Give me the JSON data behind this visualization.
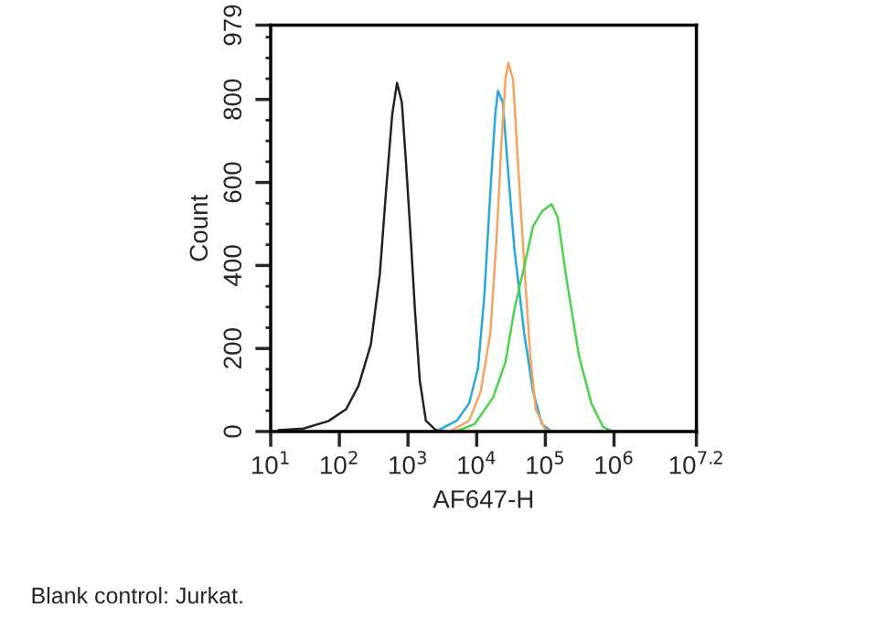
{
  "chart_data": {
    "type": "line",
    "xlabel": "AF647-H",
    "ylabel": "Count",
    "log": "x",
    "xlim": [
      10,
      15848932
    ],
    "ylim": [
      0,
      979
    ],
    "xticks": [
      {
        "value": 10,
        "label": "10$^{1}$"
      },
      {
        "value": 100,
        "label": "10$^{2}$"
      },
      {
        "value": 1000,
        "label": "10$^{3}$"
      },
      {
        "value": 10000,
        "label": "10$^{4}$"
      },
      {
        "value": 100000,
        "label": "10$^{5}$"
      },
      {
        "value": 1000000,
        "label": "10$^{6}$"
      },
      {
        "value": 15848932,
        "label": "10$^{7.2}$"
      }
    ],
    "yticks": [
      0,
      200,
      400,
      600,
      800,
      979
    ],
    "marker": "none",
    "line_style": "solid",
    "series": [
      {
        "color": "#222222",
        "x": [
          13,
          30,
          69,
          126,
          191,
          288,
          389,
          479,
          589,
          692,
          813,
          933,
          1096,
          1259,
          1479,
          1820,
          2512,
          3388
        ],
        "values": [
          3,
          7,
          25,
          54,
          111,
          210,
          380,
          580,
          764,
          840,
          793,
          650,
          466,
          295,
          125,
          26,
          4,
          0
        ]
      },
      {
        "color": "#29a9d9",
        "x": [
          2754,
          5129,
          7762,
          10471,
          12882,
          15849,
          18621,
          20417,
          23988,
          28840,
          35481,
          48978,
          66069,
          89125,
          123027
        ],
        "values": [
          3,
          26,
          68,
          153,
          324,
          580,
          764,
          821,
          793,
          622,
          438,
          239,
          97,
          18,
          0
        ]
      },
      {
        "color": "#f4a460",
        "x": [
          4169,
          7762,
          11482,
          15849,
          19498,
          22909,
          26303,
          28840,
          33884,
          39811,
          48978,
          60256,
          72444,
          100000,
          134896
        ],
        "values": [
          1,
          26,
          97,
          239,
          466,
          693,
          849,
          888,
          849,
          650,
          409,
          182,
          54,
          4,
          0
        ]
      },
      {
        "color": "#4cd34c",
        "x": [
          5129,
          9333,
          17378,
          26303,
          35481,
          48978,
          66069,
          89125,
          123027,
          151356,
          204174,
          309030,
          467735,
          691831,
          954993
        ],
        "values": [
          1,
          18,
          82,
          168,
          295,
          395,
          494,
          530,
          548,
          516,
          366,
          182,
          68,
          11,
          0
        ]
      }
    ],
    "annotations": [
      "Blank control: Jurkat."
    ]
  }
}
